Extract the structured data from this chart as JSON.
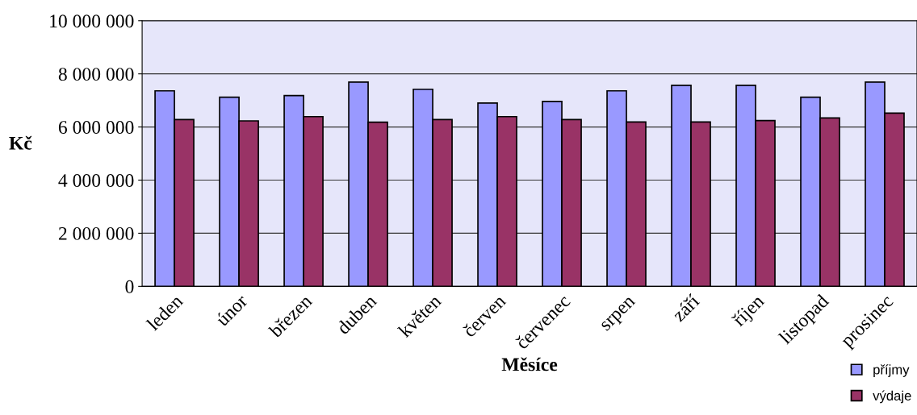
{
  "chart_data": {
    "type": "bar",
    "xlabel": "Měsíce",
    "ylabel": "Kč",
    "categories": [
      "leden",
      "únor",
      "březen",
      "duben",
      "květen",
      "červen",
      "červenec",
      "srpen",
      "září",
      "říjen",
      "listopad",
      "prosinec"
    ],
    "series": [
      {
        "name": "příjmy",
        "color": "#9999ff",
        "values": [
          7360000,
          7120000,
          7180000,
          7690000,
          7420000,
          6900000,
          6960000,
          7360000,
          7570000,
          7570000,
          7120000,
          7690000
        ]
      },
      {
        "name": "výdaje",
        "color": "#993366",
        "values": [
          6280000,
          6230000,
          6390000,
          6180000,
          6280000,
          6390000,
          6280000,
          6190000,
          6190000,
          6240000,
          6340000,
          6520000
        ]
      }
    ],
    "ylim": [
      0,
      10000000
    ],
    "yticks": [
      {
        "value": 0,
        "label": "0"
      },
      {
        "value": 2000000,
        "label": "2 000 000"
      },
      {
        "value": 4000000,
        "label": "4 000 000"
      },
      {
        "value": 6000000,
        "label": "6 000 000"
      },
      {
        "value": 8000000,
        "label": "8 000 000"
      },
      {
        "value": 10000000,
        "label": "10 000 000"
      }
    ],
    "grid": "y",
    "legend": "bottom right"
  }
}
